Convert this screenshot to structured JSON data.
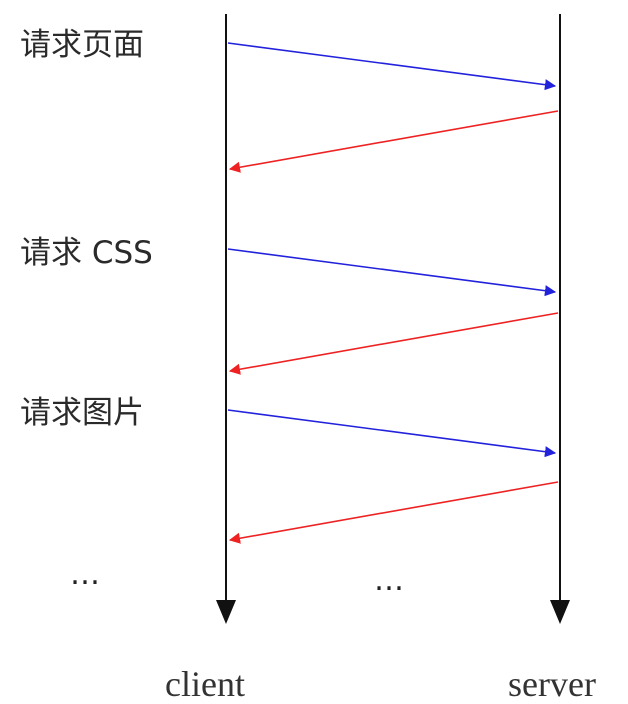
{
  "steps": [
    {
      "label": "请求页面"
    },
    {
      "label": "请求 CSS"
    },
    {
      "label": "请求图片"
    }
  ],
  "ellipsis_left": "…",
  "ellipsis_right": "…",
  "lifelines": {
    "client": {
      "label": "client"
    },
    "server": {
      "label": "server"
    }
  },
  "colors": {
    "request_arrow": "#2222dd",
    "response_arrow": "#ee2222",
    "lifeline": "#111111"
  }
}
